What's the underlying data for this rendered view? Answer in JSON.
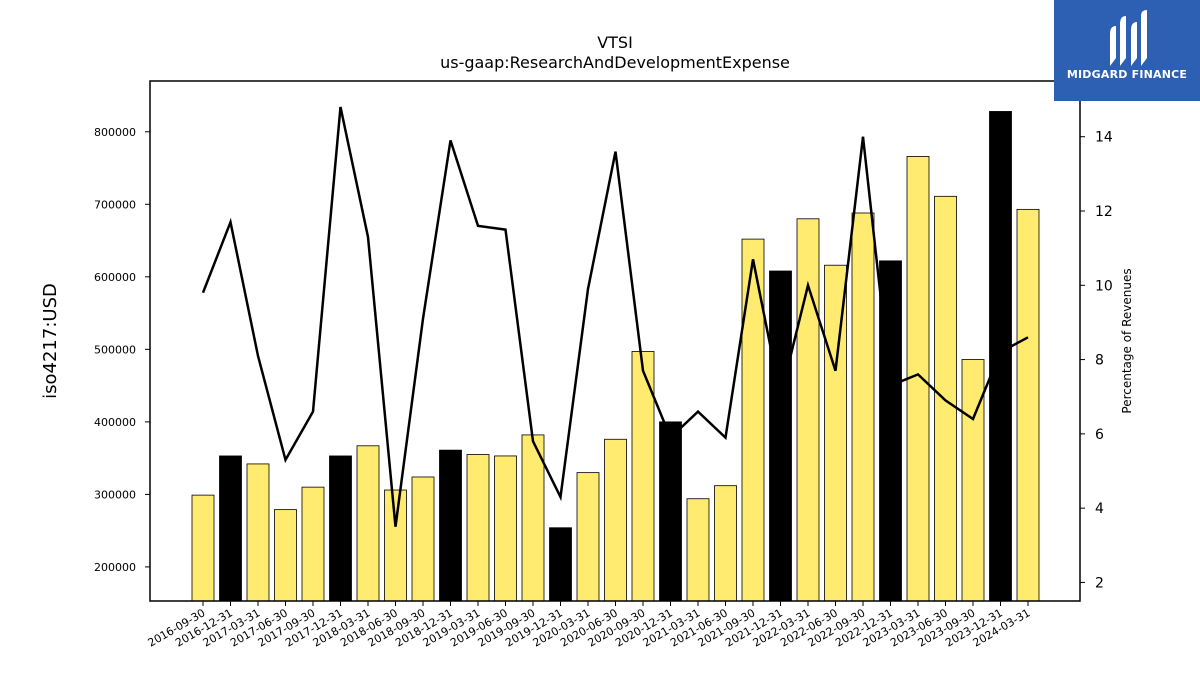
{
  "brand": {
    "name": "MIDGARD FINANCE"
  },
  "chart_data": {
    "type": "bar",
    "title": "VTSI",
    "subtitle": "us-gaap:ResearchAndDevelopmentExpense",
    "ylabel": "iso4217:USD",
    "y2label": "Percentage of Revenues",
    "ylim": [
      153000,
      870000
    ],
    "y2lim": [
      1.5,
      15.5
    ],
    "yticks": [
      200000,
      300000,
      400000,
      500000,
      600000,
      700000,
      800000
    ],
    "y2ticks": [
      2,
      4,
      6,
      8,
      10,
      12,
      14
    ],
    "categories": [
      "2016-09-30",
      "2016-12-31",
      "2017-03-31",
      "2017-06-30",
      "2017-09-30",
      "2017-12-31",
      "2018-03-31",
      "2018-06-30",
      "2018-09-30",
      "2018-12-31",
      "2019-03-31",
      "2019-06-30",
      "2019-09-30",
      "2019-12-31",
      "2020-03-31",
      "2020-06-30",
      "2020-09-30",
      "2020-12-31",
      "2021-03-31",
      "2021-06-30",
      "2021-09-30",
      "2021-12-31",
      "2022-03-31",
      "2022-06-30",
      "2022-09-30",
      "2022-12-31",
      "2023-03-31",
      "2023-06-30",
      "2023-09-30",
      "2023-12-31",
      "2024-03-31"
    ],
    "series": [
      {
        "kind": "bar",
        "values": [
          299000,
          353000,
          342000,
          279000,
          310000,
          353000,
          367000,
          306000,
          324000,
          361000,
          355000,
          353000,
          382000,
          254000,
          330000,
          376000,
          497000,
          400000,
          294000,
          312000,
          652000,
          608000,
          680000,
          616000,
          688000,
          622000,
          766000,
          711000,
          486000,
          828000,
          693000
        ],
        "highlight": [
          false,
          true,
          false,
          false,
          false,
          true,
          false,
          false,
          false,
          true,
          false,
          false,
          false,
          true,
          false,
          false,
          false,
          true,
          false,
          false,
          false,
          true,
          false,
          false,
          false,
          true,
          false,
          false,
          false,
          true,
          false
        ]
      },
      {
        "kind": "line",
        "axis": "right",
        "values": [
          9.8,
          11.7,
          8.1,
          5.3,
          6.6,
          14.8,
          11.3,
          3.5,
          9.1,
          13.9,
          11.6,
          11.5,
          5.8,
          4.3,
          9.9,
          13.6,
          7.7,
          5.9,
          6.6,
          5.9,
          10.7,
          7.0,
          10.0,
          7.7,
          14.0,
          7.3,
          7.6,
          6.9,
          6.4,
          8.2,
          8.6
        ]
      }
    ],
    "colors": {
      "bar": "#ffeb70",
      "bar_highlight": "#000000",
      "line": "#000000"
    },
    "grid": false
  }
}
